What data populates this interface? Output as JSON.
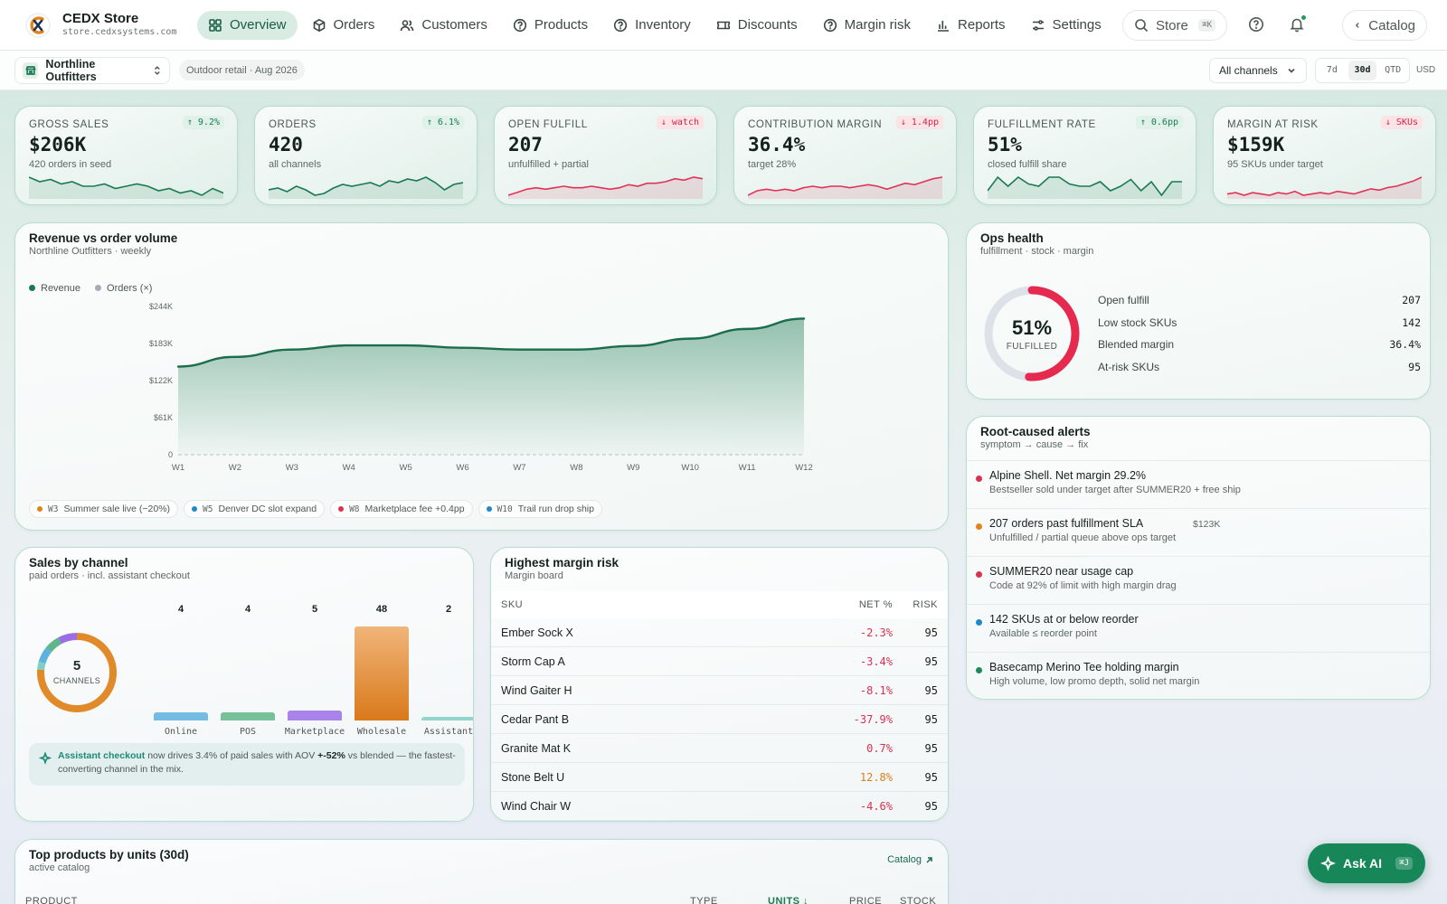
{
  "brand": {
    "name": "CEDX Store",
    "url": "store.cedxsystems.com"
  },
  "nav": [
    {
      "label": "Overview",
      "icon": "grid-icon",
      "active": true
    },
    {
      "label": "Orders",
      "icon": "box-icon"
    },
    {
      "label": "Customers",
      "icon": "users-icon"
    },
    {
      "label": "Products",
      "icon": "help-circle-icon"
    },
    {
      "label": "Inventory",
      "icon": "help-circle-icon"
    },
    {
      "label": "Discounts",
      "icon": "ticket-icon"
    },
    {
      "label": "Margin risk",
      "icon": "help-circle-icon"
    },
    {
      "label": "Reports",
      "icon": "bar-chart-icon"
    },
    {
      "label": "Settings",
      "icon": "sliders-icon"
    }
  ],
  "top_right": {
    "store_label": "Store",
    "store_kbd": "⌘K",
    "catalog_label": "Catalog"
  },
  "subbar": {
    "org_name": "Northline Outfitters",
    "context": "Outdoor retail · Aug 2026",
    "channel_select": "All channels",
    "ranges": [
      "7d",
      "30d",
      "QTD"
    ],
    "active_range": "30d",
    "currency": "USD"
  },
  "kpis": [
    {
      "label": "GROSS SALES",
      "value": "$206K",
      "sub": "420 orders in seed",
      "badge": "↑ 9.2%",
      "tone": "up",
      "spark": [
        14,
        12,
        13,
        11,
        12,
        10,
        10,
        11,
        9,
        10,
        11,
        10,
        8,
        9,
        7,
        8,
        6,
        9,
        7
      ]
    },
    {
      "label": "ORDERS",
      "value": "420",
      "sub": "all channels",
      "badge": "↑ 6.1%",
      "tone": "up",
      "spark": [
        8,
        9,
        7,
        10,
        8,
        5,
        6,
        9,
        11,
        10,
        11,
        12,
        10,
        13,
        12,
        14,
        13,
        15,
        12,
        8,
        11,
        12
      ]
    },
    {
      "label": "OPEN FULFILL",
      "value": "207",
      "sub": "unfulfilled + partial",
      "badge": "↓ watch",
      "tone": "down",
      "spark": [
        6,
        8,
        10,
        11,
        10,
        11,
        12,
        11,
        11,
        12,
        11,
        10,
        11,
        13,
        12,
        14,
        14,
        15,
        17,
        16,
        18,
        17
      ]
    },
    {
      "label": "CONTRIBUTION MARGIN",
      "value": "36.4%",
      "sub": "target 28%",
      "badge": "↓ 1.4pp",
      "tone": "down",
      "spark": [
        6,
        9,
        10,
        9,
        10,
        9,
        11,
        12,
        11,
        12,
        12,
        11,
        12,
        13,
        12,
        10,
        12,
        14,
        13,
        15,
        17,
        18
      ]
    },
    {
      "label": "FULFILLMENT RATE",
      "value": "51%",
      "sub": "closed fulfill share",
      "badge": "↑ 0.6pp",
      "tone": "up",
      "spark": [
        10,
        16,
        12,
        16,
        13,
        12,
        16,
        16,
        13,
        12,
        12,
        14,
        10,
        12,
        15,
        10,
        14,
        8,
        14,
        14
      ]
    },
    {
      "label": "MARGIN AT RISK",
      "value": "$159K",
      "sub": "95 SKUs under target",
      "badge": "↓ SKUs",
      "tone": "down",
      "spark": [
        8,
        9,
        7,
        9,
        8,
        7,
        9,
        8,
        10,
        7,
        8,
        9,
        8,
        10,
        9,
        8,
        10,
        12,
        11,
        13,
        14,
        16,
        18,
        21
      ]
    }
  ],
  "revenue_card": {
    "title": "Revenue vs order volume",
    "sub": "Northline Outfitters · weekly",
    "legend": [
      {
        "label": "Revenue",
        "color": "#1b7a52"
      },
      {
        "label": "Orders (×)",
        "color": "#a3acb9"
      }
    ],
    "annotations": [
      {
        "week": "W3",
        "text": "Summer sale live (−20%)",
        "color": "#e0831a"
      },
      {
        "week": "W5",
        "text": "Denver DC slot expand",
        "color": "#2287c9"
      },
      {
        "week": "W8",
        "text": "Marketplace fee +0.4pp",
        "color": "#d9314f"
      },
      {
        "week": "W10",
        "text": "Trail run drop ship",
        "color": "#2287c9"
      }
    ]
  },
  "chart_data": {
    "type": "area",
    "x": [
      "W1",
      "W2",
      "W3",
      "W4",
      "W5",
      "W6",
      "W7",
      "W8",
      "W9",
      "W10",
      "W11",
      "W12"
    ],
    "series": [
      {
        "name": "Revenue",
        "values": [
          145000,
          161000,
          173000,
          180000,
          180000,
          176000,
          173000,
          173000,
          179000,
          191000,
          207000,
          224000
        ]
      }
    ],
    "yticks": [
      "0",
      "$61K",
      "$122K",
      "$183K",
      "$244K"
    ],
    "ylim": [
      0,
      244000
    ],
    "grid": false,
    "legend": "top-left"
  },
  "ops": {
    "title": "Ops health",
    "sub": "fulfillment · stock · margin",
    "gauge_value": "51%",
    "gauge_label": "FULFILLED",
    "gauge_fraction": 0.51,
    "rows": [
      {
        "label": "Open fulfill",
        "value": "207"
      },
      {
        "label": "Low stock SKUs",
        "value": "142"
      },
      {
        "label": "Blended margin",
        "value": "36.4%"
      },
      {
        "label": "At-risk SKUs",
        "value": "95"
      }
    ]
  },
  "alerts": {
    "title": "Root-caused alerts",
    "sub": "symptom → cause → fix",
    "items": [
      {
        "title": "Alpine Shell. Net margin 29.2%",
        "sub": "Bestseller sold under target after SUMMER20 + free ship",
        "color": "#d9314f",
        "amount": ""
      },
      {
        "title": "207 orders past fulfillment SLA",
        "sub": "Unfulfilled / partial queue above ops target",
        "color": "#e0831a",
        "amount": "$123K"
      },
      {
        "title": "SUMMER20 near usage cap",
        "sub": "Code at 92% of limit with high margin drag",
        "color": "#d9314f",
        "amount": ""
      },
      {
        "title": "142 SKUs at or below reorder",
        "sub": "Available ≤ reorder point",
        "color": "#2287c9",
        "amount": ""
      },
      {
        "title": "Basecamp Merino Tee holding margin",
        "sub": "High volume, low promo depth, solid net margin",
        "color": "#1b8a5a",
        "amount": ""
      }
    ]
  },
  "channels": {
    "title": "Sales by channel",
    "sub": "paid orders · incl. assistant checkout",
    "donut_value": "5",
    "donut_label": "CHANNELS",
    "bars": [
      {
        "label": "Online",
        "value": 4,
        "color": "#5eb2e0"
      },
      {
        "label": "POS",
        "value": 4,
        "color": "#5fb68a"
      },
      {
        "label": "Marketplace",
        "value": 5,
        "color": "#9b6ee8"
      },
      {
        "label": "Wholesale",
        "value": 48,
        "color": "#e08a2a"
      },
      {
        "label": "Assistant",
        "value": 2,
        "color": "#7fcfc4"
      }
    ],
    "insight": {
      "lead": "Assistant checkout",
      "mid": " now drives 3.4% of paid sales with AOV ",
      "bold": "+-52%",
      "tail": " vs blended — the fastest-converting channel in the mix."
    }
  },
  "margin_risk": {
    "title": "Highest margin risk",
    "sub": "Margin board",
    "headers": [
      "SKU",
      "NET %",
      "RISK"
    ],
    "rows": [
      {
        "sku": "Ember Sock X",
        "net": "-2.3%",
        "risk": "95",
        "tone": "#d9314f"
      },
      {
        "sku": "Storm Cap A",
        "net": "-3.4%",
        "risk": "95",
        "tone": "#d9314f"
      },
      {
        "sku": "Wind Gaiter H",
        "net": "-8.1%",
        "risk": "95",
        "tone": "#d9314f"
      },
      {
        "sku": "Cedar Pant B",
        "net": "-37.9%",
        "risk": "95",
        "tone": "#d9314f"
      },
      {
        "sku": "Granite Mat K",
        "net": "0.7%",
        "risk": "95",
        "tone": "#d9314f"
      },
      {
        "sku": "Stone Belt U",
        "net": "12.8%",
        "risk": "95",
        "tone": "#d9801a"
      },
      {
        "sku": "Wind Chair W",
        "net": "-4.6%",
        "risk": "95",
        "tone": "#d9314f"
      }
    ]
  },
  "top_products": {
    "title": "Top products by units (30d)",
    "sub": "active catalog",
    "link": "Catalog",
    "headers": [
      "PRODUCT",
      "TYPE",
      "UNITS ↓",
      "PRICE",
      "STOCK"
    ]
  },
  "ask_ai": {
    "label": "Ask AI",
    "kbd": "⌘J"
  }
}
